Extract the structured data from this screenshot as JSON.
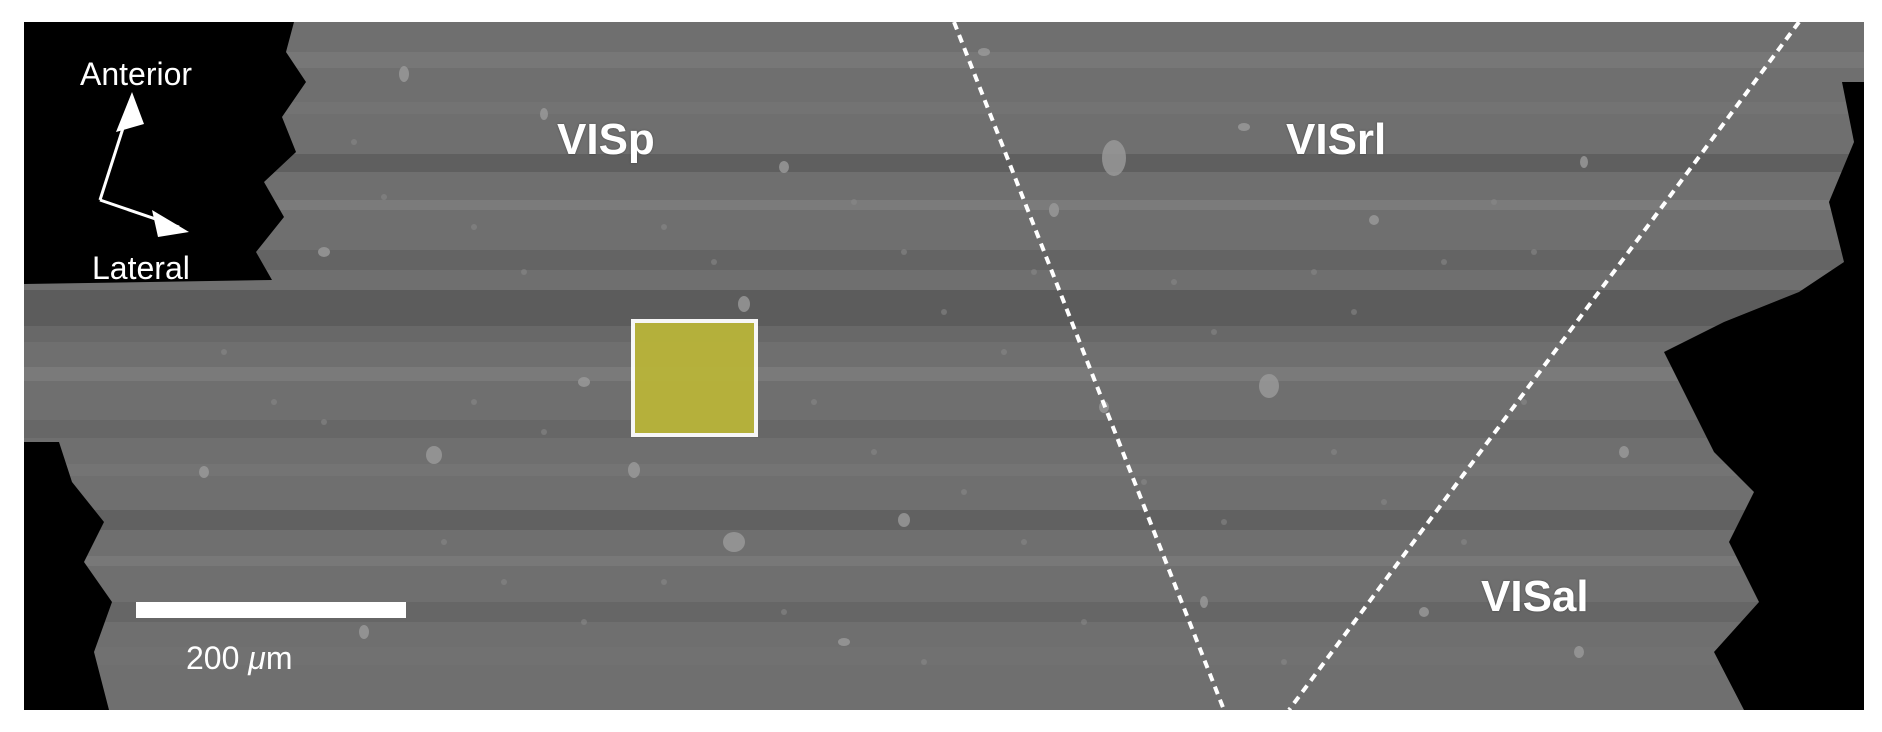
{
  "figure": {
    "regions": {
      "visp": "VISp",
      "visrl": "VISrl",
      "visal": "VISal"
    },
    "orientation": {
      "anterior": "Anterior",
      "lateral": "Lateral"
    },
    "scale_bar": {
      "value": "200",
      "unit_prefix": "μ",
      "unit_suffix": "m"
    },
    "colors": {
      "roi_fill": "#b9b439",
      "roi_border": "#ffffff",
      "background_tissue": "#6f6f6f",
      "void": "#000000",
      "boundary_lines": "#ffffff"
    }
  }
}
